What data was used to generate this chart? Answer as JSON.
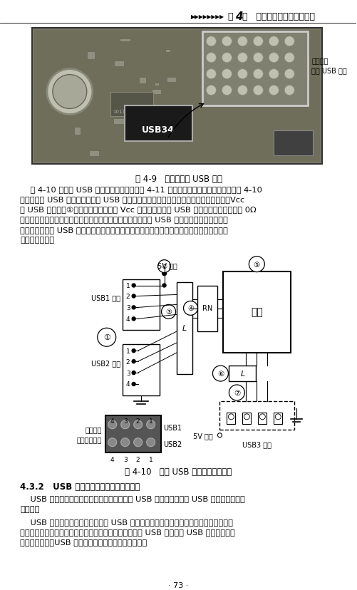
{
  "page_width": 5.01,
  "page_height": 8.29,
  "dpi": 100,
  "bg_color": "#ffffff",
  "fig_caption1": "图 4-9   主板的扩展 USB 接口",
  "fig_caption2": "图 4-10   主板 USB 接口原理及引脚图",
  "section_title": "4.3.2   USB 接口电路常见故障分析及排除",
  "page_num": "· 73 ·",
  "label_usb34": "USB34",
  "label_motherboard_usb": "主板中的\n扩展 USB 接口",
  "circuit_label_5v": "5V 供电",
  "circuit_label_usb1": "USB1 接口",
  "circuit_label_usb2": "USB2 接口",
  "circuit_label_rn": "RN",
  "circuit_label_nb": "南桥",
  "circuit_label_l": "L",
  "circuit_label_l2": "L",
  "circuit_label_5v2": "5V 供电",
  "circuit_label_usb3": "USB3 接口",
  "circuit_label_usb1b": "USB1",
  "circuit_label_usb2b": "USB2",
  "circuit_label_back": "反面图：\n接口侧朝自己",
  "body_lines": [
    "    图 4-10 所示是 USB 接口原理及引脚图。图 4-11 所示是该电路的应用实物图。从图 4-10",
    "中不难看出 USB 接口电路主要由 USB 接口插座、电感、滤波电容、南桥等组成。其中，Vcc",
    "为 USB 接口的第①针膘供电。有的主板 Vcc 经过保险电感为 USB 接口供电。有的主板用 0Ω",
    "电阻代替保险电感。有的主板在电路中接有贴片电容，电容在 USB 接口电路中可以起到滤波",
    "的作用，以改善 USB 数据线路信号传输的质量。而数据传输线上的贴片电感在数据传输中起",
    "到缓冲的作用。"
  ],
  "para1_lines": [
    "    USB 接口电路的故障率很高，常见的故障有 USB 接口不能使用和 USB 设备不能识别两",
    "种情况。"
  ],
  "para2_lines": [
    "    USB 接口不能使用，一般应是由 USB 插座虚焊、供电不正常、电感开路、电容短路等",
    "情况引起的。数据线与南桥之间的连接不正常，也会导致 USB 设备插入 USB 接口后，出现",
    "无反应的故障。USB 插座附近的元器件是检查的重点。"
  ]
}
